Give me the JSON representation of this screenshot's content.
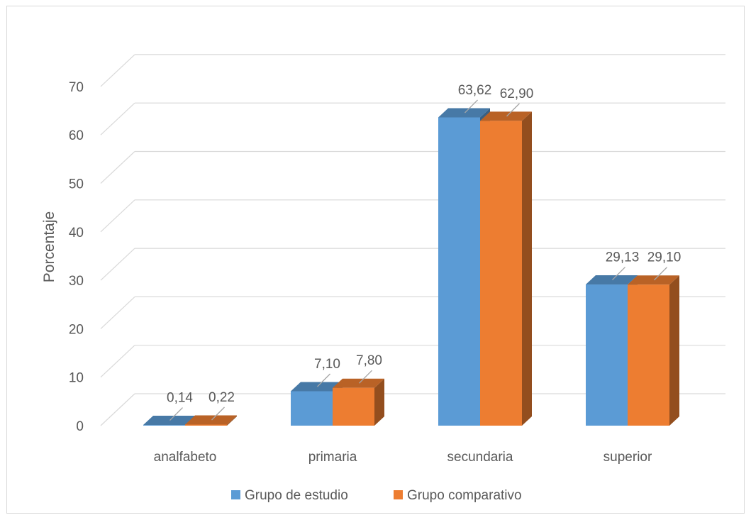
{
  "chart_data": {
    "type": "bar",
    "style": "3d-clustered-column",
    "categories": [
      "analfabeto",
      "primaria",
      "secundaria",
      "superior"
    ],
    "series": [
      {
        "name": "Grupo de estudio",
        "values": [
          0.14,
          7.1,
          63.62,
          29.13
        ],
        "labels": [
          "0,14",
          "7,10",
          "63,62",
          "29,13"
        ],
        "color": "#5b9bd5"
      },
      {
        "name": "Grupo comparativo",
        "values": [
          0.22,
          7.8,
          62.9,
          29.1
        ],
        "labels": [
          "0,22",
          "7,80",
          "62,90",
          "29,10"
        ],
        "color": "#ed7d31"
      }
    ],
    "yticks": [
      "0",
      "10",
      "20",
      "30",
      "40",
      "50",
      "60",
      "70"
    ],
    "ylim": [
      0,
      70
    ],
    "ylabel": "Porcentaje",
    "grid": true,
    "legend": "bottom"
  }
}
